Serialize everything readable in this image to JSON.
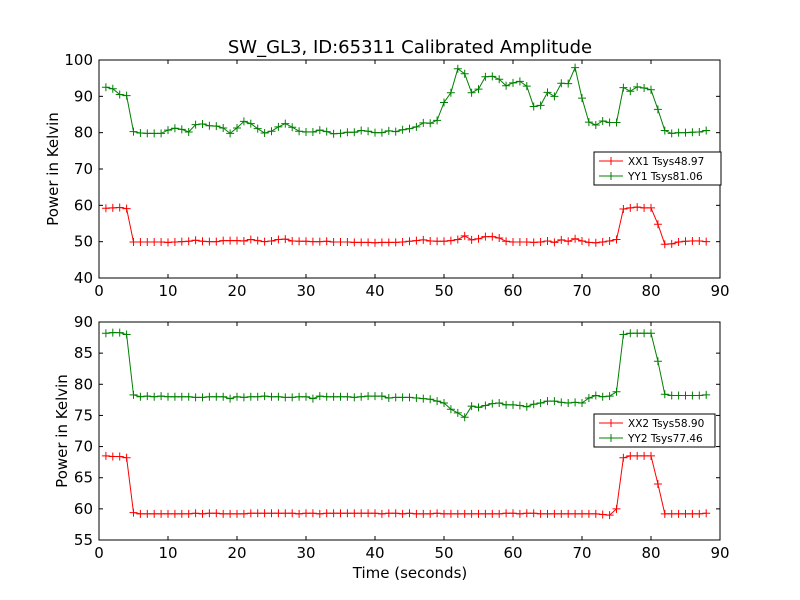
{
  "title": "SW_GL3, ID:65311 Calibrated Amplitude",
  "xlabel": "Time (seconds)",
  "colors": {
    "red": "#ff0000",
    "green": "#008000"
  },
  "chart_data": [
    {
      "type": "line",
      "title": "SW_GL3, ID:65311 Calibrated Amplitude",
      "xlabel": "",
      "ylabel": "Power in Kelvin",
      "xlim": [
        0,
        90
      ],
      "ylim": [
        40,
        100
      ],
      "xticks": [
        0,
        10,
        20,
        30,
        40,
        50,
        60,
        70,
        80,
        90
      ],
      "yticks": [
        40,
        50,
        60,
        70,
        80,
        90,
        100
      ],
      "grid": false,
      "legend_position": "right",
      "marker": "plus",
      "x": [
        1,
        2,
        3,
        4,
        5,
        6,
        7,
        8,
        9,
        10,
        11,
        12,
        13,
        14,
        15,
        16,
        17,
        18,
        19,
        20,
        21,
        22,
        23,
        24,
        25,
        26,
        27,
        28,
        29,
        30,
        31,
        32,
        33,
        34,
        35,
        36,
        37,
        38,
        39,
        40,
        41,
        42,
        43,
        44,
        45,
        46,
        47,
        48,
        49,
        50,
        51,
        52,
        53,
        54,
        55,
        56,
        57,
        58,
        59,
        60,
        61,
        62,
        63,
        64,
        65,
        66,
        67,
        68,
        69,
        70,
        71,
        72,
        73,
        74,
        75,
        76,
        77,
        78,
        79,
        80,
        81,
        82,
        83,
        84,
        85,
        86,
        87,
        88
      ],
      "series": [
        {
          "name": "XX1 Tsys48.97",
          "color": "#ff0000",
          "values": [
            59.2,
            59.3,
            59.4,
            59.1,
            49.9,
            49.9,
            49.9,
            49.9,
            49.9,
            49.8,
            49.9,
            50.0,
            50.1,
            50.4,
            50.1,
            50.0,
            50.0,
            50.3,
            50.3,
            50.3,
            50.2,
            50.6,
            50.3,
            50.0,
            50.2,
            50.6,
            50.7,
            50.2,
            50.1,
            50.1,
            50.0,
            50.0,
            50.1,
            49.9,
            49.9,
            49.9,
            49.8,
            49.8,
            49.8,
            49.7,
            49.8,
            49.8,
            49.8,
            49.9,
            50.1,
            50.3,
            50.5,
            50.2,
            50.1,
            50.1,
            50.3,
            50.6,
            51.6,
            50.5,
            50.8,
            51.4,
            51.4,
            51.0,
            50.1,
            49.9,
            49.9,
            49.9,
            49.8,
            49.9,
            50.2,
            49.8,
            50.5,
            50.1,
            50.8,
            50.2,
            49.8,
            49.7,
            49.9,
            50.2,
            50.6,
            59.0,
            59.3,
            59.5,
            59.3,
            59.3,
            54.8,
            49.3,
            49.4,
            49.9,
            50.1,
            50.2,
            50.2,
            50.0
          ]
        },
        {
          "name": "YY1 Tsys81.06",
          "color": "#008000",
          "values": [
            92.5,
            92.1,
            90.5,
            90.2,
            80.3,
            79.9,
            79.8,
            79.8,
            79.8,
            80.7,
            81.2,
            80.9,
            80.2,
            82.2,
            82.4,
            81.9,
            81.8,
            81.3,
            79.8,
            81.3,
            83.1,
            82.5,
            81.1,
            79.9,
            80.4,
            81.6,
            82.5,
            81.5,
            80.4,
            80.2,
            80.2,
            80.7,
            80.3,
            79.7,
            79.8,
            80.1,
            80.1,
            80.6,
            80.4,
            80.0,
            80.0,
            80.5,
            80.3,
            80.8,
            81.1,
            81.6,
            82.7,
            82.6,
            83.4,
            88.3,
            91.0,
            97.6,
            96.2,
            91.0,
            92.0,
            95.4,
            95.5,
            94.7,
            92.9,
            93.7,
            94.1,
            92.8,
            87.2,
            87.5,
            91.1,
            90.0,
            93.6,
            93.5,
            97.9,
            89.5,
            82.9,
            82.1,
            83.2,
            82.8,
            82.8,
            92.4,
            91.4,
            92.6,
            92.3,
            91.8,
            86.4,
            80.6,
            79.8,
            80.0,
            80.0,
            80.1,
            80.2,
            80.6
          ]
        }
      ]
    },
    {
      "type": "line",
      "title": "",
      "xlabel": "Time (seconds)",
      "ylabel": "Power in Kelvin",
      "xlim": [
        0,
        90
      ],
      "ylim": [
        55,
        90
      ],
      "xticks": [
        0,
        10,
        20,
        30,
        40,
        50,
        60,
        70,
        80,
        90
      ],
      "yticks": [
        55,
        60,
        65,
        70,
        75,
        80,
        85,
        90
      ],
      "grid": false,
      "legend_position": "right",
      "marker": "plus",
      "x": [
        1,
        2,
        3,
        4,
        5,
        6,
        7,
        8,
        9,
        10,
        11,
        12,
        13,
        14,
        15,
        16,
        17,
        18,
        19,
        20,
        21,
        22,
        23,
        24,
        25,
        26,
        27,
        28,
        29,
        30,
        31,
        32,
        33,
        34,
        35,
        36,
        37,
        38,
        39,
        40,
        41,
        42,
        43,
        44,
        45,
        46,
        47,
        48,
        49,
        50,
        51,
        52,
        53,
        54,
        55,
        56,
        57,
        58,
        59,
        60,
        61,
        62,
        63,
        64,
        65,
        66,
        67,
        68,
        69,
        70,
        71,
        72,
        73,
        74,
        75,
        76,
        77,
        78,
        79,
        80,
        81,
        82,
        83,
        84,
        85,
        86,
        87,
        88
      ],
      "series": [
        {
          "name": "XX2 Tsys58.90",
          "color": "#ff0000",
          "values": [
            68.5,
            68.4,
            68.4,
            68.2,
            59.4,
            59.2,
            59.2,
            59.2,
            59.2,
            59.2,
            59.2,
            59.2,
            59.2,
            59.3,
            59.2,
            59.3,
            59.3,
            59.2,
            59.2,
            59.2,
            59.2,
            59.3,
            59.3,
            59.3,
            59.3,
            59.3,
            59.3,
            59.3,
            59.2,
            59.3,
            59.3,
            59.2,
            59.3,
            59.3,
            59.3,
            59.3,
            59.3,
            59.3,
            59.3,
            59.3,
            59.2,
            59.3,
            59.3,
            59.2,
            59.3,
            59.2,
            59.2,
            59.2,
            59.3,
            59.2,
            59.2,
            59.2,
            59.2,
            59.2,
            59.2,
            59.2,
            59.2,
            59.2,
            59.3,
            59.3,
            59.2,
            59.3,
            59.3,
            59.2,
            59.2,
            59.2,
            59.2,
            59.2,
            59.2,
            59.2,
            59.2,
            59.2,
            59.1,
            59.0,
            60.0,
            68.2,
            68.5,
            68.5,
            68.5,
            68.5,
            64.0,
            59.2,
            59.2,
            59.2,
            59.2,
            59.2,
            59.2,
            59.3
          ]
        },
        {
          "name": "YY2 Tsys77.46",
          "color": "#008000",
          "values": [
            88.2,
            88.3,
            88.3,
            88.0,
            78.3,
            78.0,
            78.1,
            78.0,
            78.1,
            78.0,
            78.0,
            78.0,
            78.0,
            77.9,
            77.9,
            78.0,
            78.0,
            78.0,
            77.7,
            78.0,
            77.9,
            78.0,
            78.0,
            78.1,
            78.0,
            78.0,
            77.9,
            77.9,
            78.0,
            78.0,
            77.7,
            78.1,
            78.0,
            78.0,
            78.0,
            78.0,
            77.9,
            78.0,
            78.1,
            78.1,
            78.1,
            77.8,
            77.9,
            77.9,
            77.9,
            77.8,
            77.7,
            77.6,
            77.3,
            77.0,
            76.0,
            75.4,
            74.7,
            76.5,
            76.3,
            76.6,
            76.9,
            77.0,
            76.7,
            76.7,
            76.6,
            76.4,
            76.8,
            77.0,
            77.3,
            77.3,
            77.1,
            77.0,
            77.1,
            77.0,
            77.8,
            78.2,
            78.0,
            78.1,
            78.8,
            88.0,
            88.2,
            88.2,
            88.2,
            88.2,
            83.7,
            78.4,
            78.2,
            78.2,
            78.2,
            78.2,
            78.2,
            78.3
          ]
        }
      ]
    }
  ]
}
